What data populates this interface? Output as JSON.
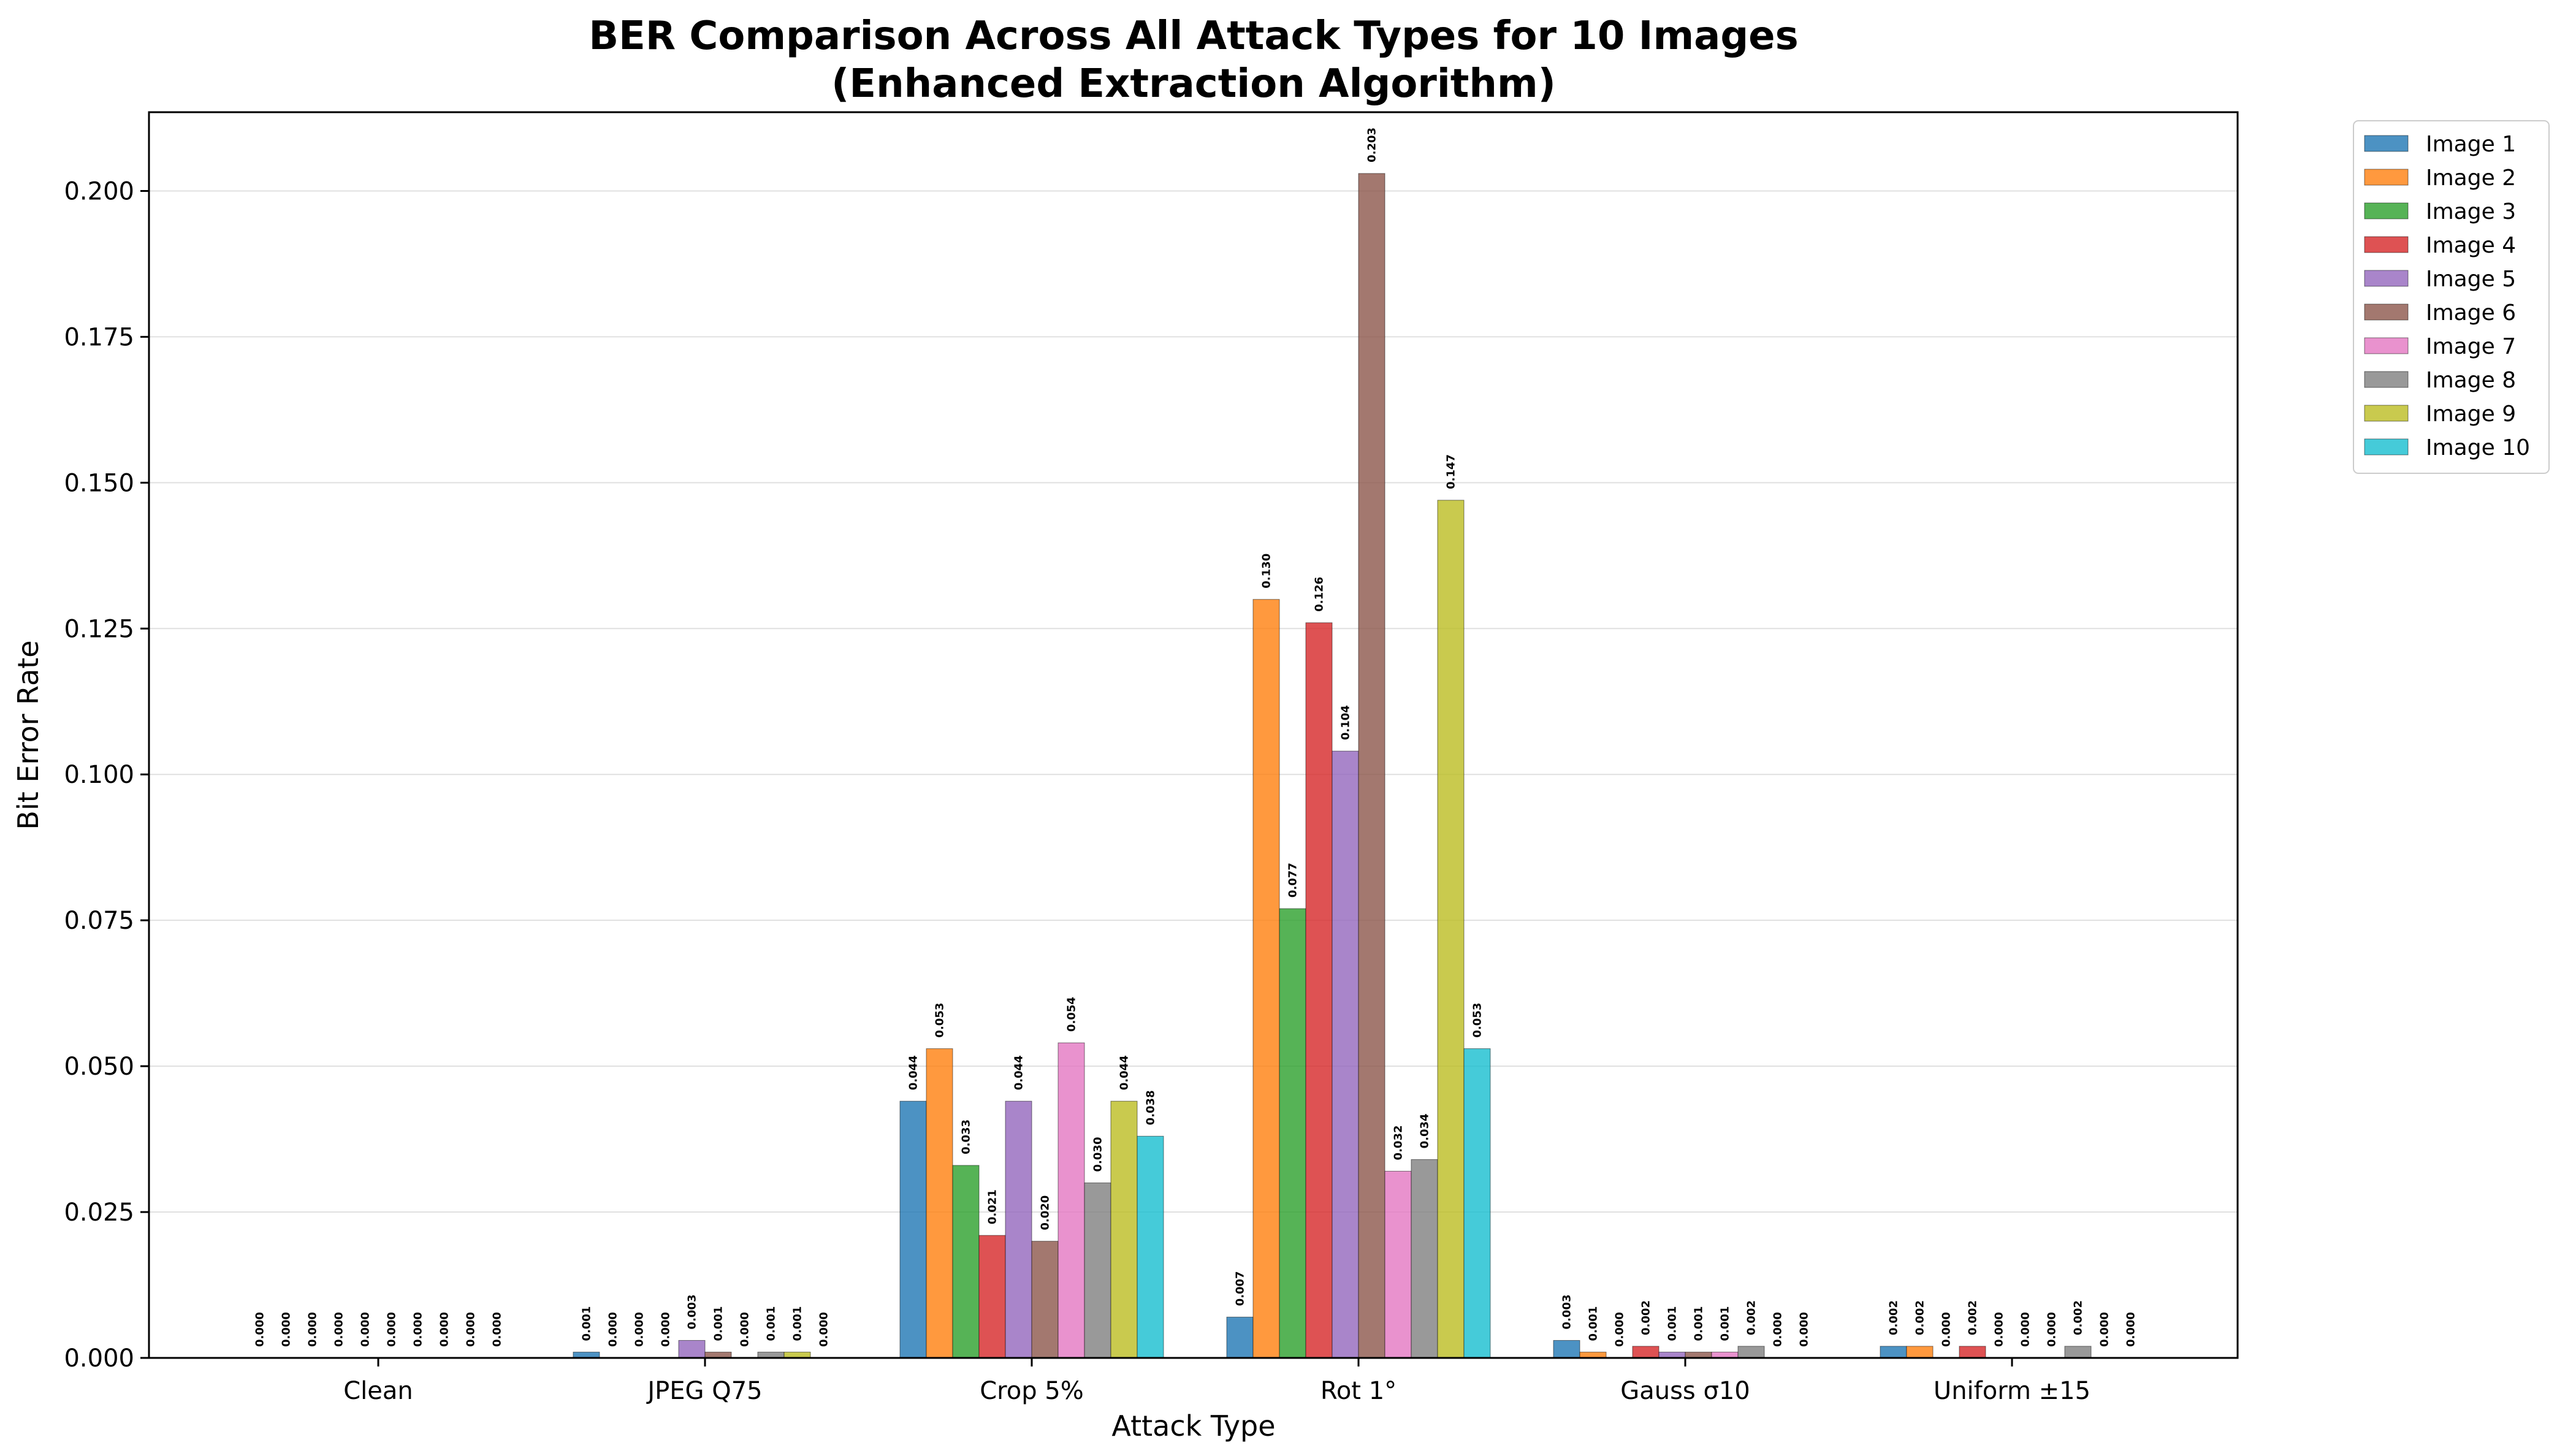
{
  "chart_data": {
    "type": "bar",
    "title": "BER Comparison Across All Attack Types for 10 Images",
    "subtitle": "(Enhanced Extraction Algorithm)",
    "xlabel": "Attack Type",
    "ylabel": "Bit Error Rate",
    "ylim": [
      0,
      0.2135
    ],
    "yticks": [
      "0.000",
      "0.025",
      "0.050",
      "0.075",
      "0.100",
      "0.125",
      "0.150",
      "0.175",
      "0.200"
    ],
    "grid": "horizontal",
    "legend_position": "outside-top-right",
    "categories": [
      "Clean",
      "JPEG Q75",
      "Crop 5%",
      "Rot 1°",
      "Gauss σ10",
      "Uniform ±15"
    ],
    "series": [
      {
        "name": "Image 1",
        "color": "#1f77b4",
        "values": [
          0.0,
          0.001,
          0.044,
          0.007,
          0.003,
          0.002
        ],
        "labels": [
          "0.000",
          "0.001",
          "0.044",
          "0.007",
          "0.003",
          "0.002"
        ]
      },
      {
        "name": "Image 2",
        "color": "#ff7f0e",
        "values": [
          0.0,
          0.0,
          0.053,
          0.13,
          0.001,
          0.002
        ],
        "labels": [
          "0.000",
          "0.000",
          "0.053",
          "0.130",
          "0.001",
          "0.002"
        ]
      },
      {
        "name": "Image 3",
        "color": "#2ca02c",
        "values": [
          0.0,
          0.0,
          0.033,
          0.077,
          0.0,
          0.0
        ],
        "labels": [
          "0.000",
          "0.000",
          "0.033",
          "0.077",
          "0.000",
          "0.000"
        ]
      },
      {
        "name": "Image 4",
        "color": "#d62728",
        "values": [
          0.0,
          0.0,
          0.021,
          0.126,
          0.002,
          0.002
        ],
        "labels": [
          "0.000",
          "0.000",
          "0.021",
          "0.126",
          "0.002",
          "0.002"
        ]
      },
      {
        "name": "Image 5",
        "color": "#9467bd",
        "values": [
          0.0,
          0.003,
          0.044,
          0.104,
          0.001,
          0.0
        ],
        "labels": [
          "0.000",
          "0.003",
          "0.044",
          "0.104",
          "0.001",
          "0.000"
        ]
      },
      {
        "name": "Image 6",
        "color": "#8c564b",
        "values": [
          0.0,
          0.001,
          0.02,
          0.203,
          0.001,
          0.0
        ],
        "labels": [
          "0.000",
          "0.001",
          "0.020",
          "0.203",
          "0.001",
          "0.000"
        ]
      },
      {
        "name": "Image 7",
        "color": "#e377c2",
        "values": [
          0.0,
          0.0,
          0.054,
          0.032,
          0.001,
          0.0
        ],
        "labels": [
          "0.000",
          "0.000",
          "0.054",
          "0.032",
          "0.001",
          "0.000"
        ]
      },
      {
        "name": "Image 8",
        "color": "#7f7f7f",
        "values": [
          0.0,
          0.001,
          0.03,
          0.034,
          0.002,
          0.002
        ],
        "labels": [
          "0.000",
          "0.001",
          "0.030",
          "0.034",
          "0.002",
          "0.002"
        ]
      },
      {
        "name": "Image 9",
        "color": "#bcbd22",
        "values": [
          0.0,
          0.001,
          0.044,
          0.147,
          0.0,
          0.0
        ],
        "labels": [
          "0.000",
          "0.001",
          "0.044",
          "0.147",
          "0.000",
          "0.000"
        ]
      },
      {
        "name": "Image 10",
        "color": "#17becf",
        "values": [
          0.0,
          0.0,
          0.038,
          0.053,
          0.0,
          0.0
        ],
        "labels": [
          "0.000",
          "0.000",
          "0.038",
          "0.053",
          "0.000",
          "0.000"
        ]
      }
    ]
  }
}
